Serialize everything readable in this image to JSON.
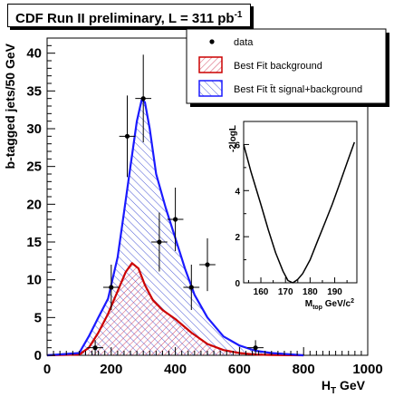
{
  "chart_data": [
    {
      "type": "line",
      "title_main": "CDF Run II preliminary, L = 311 pb",
      "title_sup": "-1",
      "xlabel_main": "H",
      "xlabel_sub": "T",
      "xlabel_unit": " GeV",
      "ylabel": "b-tagged jets/50 GeV",
      "xlim": [
        0,
        1000
      ],
      "ylim": [
        0,
        42
      ],
      "xticks": [
        0,
        200,
        400,
        600,
        800,
        1000
      ],
      "yticks": [
        0,
        5,
        10,
        15,
        20,
        25,
        30,
        35,
        40
      ],
      "legend_position": "top-right",
      "legend": [
        {
          "key": "data",
          "label": "data"
        },
        {
          "key": "bkg",
          "label": "Best Fit background"
        },
        {
          "key": "sig",
          "label": "Best Fit t̄t signal+background"
        }
      ],
      "data_points": {
        "x": [
          150,
          200,
          250,
          300,
          350,
          400,
          450,
          500,
          650
        ],
        "y": [
          1,
          9,
          29,
          34,
          15,
          18,
          9,
          12,
          1
        ],
        "yerr": [
          1,
          3,
          5.4,
          5.8,
          3.9,
          4.2,
          3,
          3.5,
          1
        ]
      },
      "series": [
        {
          "name": "Best Fit background",
          "color": "#cc0000",
          "x": [
            0,
            100,
            130,
            160,
            190,
            220,
            245,
            265,
            285,
            305,
            330,
            360,
            400,
            450,
            500,
            550,
            600,
            650,
            700,
            800
          ],
          "y": [
            0,
            0.1,
            1,
            3,
            5.5,
            8.5,
            11,
            12.2,
            11.5,
            9.3,
            7.3,
            6,
            4.8,
            3,
            1.5,
            0.7,
            0.3,
            0.1,
            0.05,
            0
          ]
        },
        {
          "name": "Best Fit t̄t signal+background",
          "color": "#1a1aff",
          "x": [
            0,
            100,
            130,
            160,
            190,
            220,
            240,
            260,
            280,
            295,
            305,
            320,
            340,
            370,
            400,
            430,
            460,
            500,
            550,
            600,
            650,
            700,
            800
          ],
          "y": [
            0,
            0.3,
            2.5,
            5,
            7.5,
            13,
            19,
            25,
            31,
            33.8,
            33.5,
            30,
            24,
            19.5,
            15.5,
            11.5,
            8,
            5,
            2.5,
            1.3,
            0.6,
            0.3,
            0
          ]
        }
      ]
    },
    {
      "type": "line",
      "ylabel": "-2logL",
      "xlabel_main": "M",
      "xlabel_sub": "top",
      "xlabel_unit": " GeV/c",
      "xlabel_sup": "2",
      "xlim": [
        153,
        199
      ],
      "ylim": [
        0,
        7
      ],
      "xticks": [
        160,
        170,
        180,
        190
      ],
      "yticks": [
        0,
        2,
        4,
        6
      ],
      "series": [
        {
          "name": "",
          "color": "#000000",
          "x": [
            153,
            156,
            160,
            163,
            166,
            169,
            171,
            173,
            175,
            177,
            180,
            183,
            186,
            189,
            192,
            195,
            198
          ],
          "y": [
            6.0,
            4.8,
            3.4,
            2.3,
            1.3,
            0.5,
            0.1,
            0.0,
            0.15,
            0.4,
            1.0,
            1.8,
            2.6,
            3.4,
            4.3,
            5.2,
            6.1
          ]
        }
      ]
    }
  ]
}
